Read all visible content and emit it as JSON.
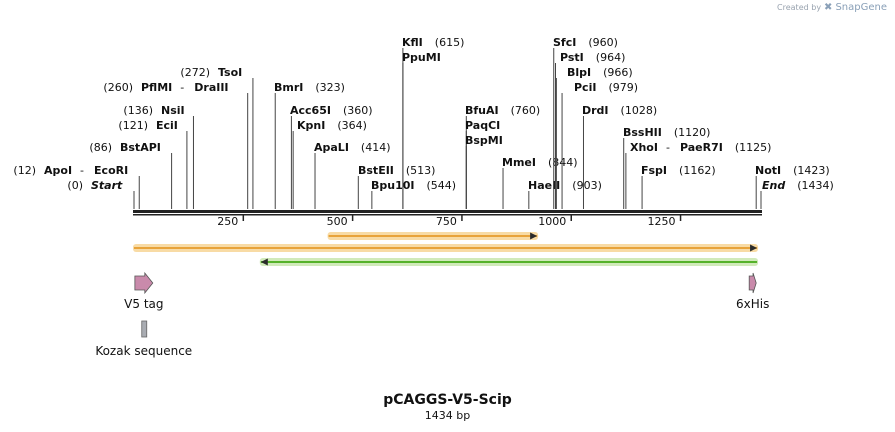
{
  "header": {
    "credit_text": "Created by",
    "brand_name": "SnapGene"
  },
  "map": {
    "plasmid_name": "pCAGGS-V5-Scip",
    "length_label": "1434 bp",
    "total_bp": 1434,
    "start_label": "Start",
    "start_pos": 0,
    "end_label": "End",
    "end_pos": 1434,
    "ticks": [
      250,
      500,
      750,
      1000,
      1250
    ]
  },
  "sites": [
    {
      "name": "ApoI",
      "alt": "EcoRI",
      "pos": 12
    },
    {
      "name": "BstAPI",
      "pos": 86
    },
    {
      "name": "EciI",
      "pos": 121
    },
    {
      "name": "NsiI",
      "pos": 136
    },
    {
      "name": "PflMI",
      "alt": "DraIII",
      "pos": 260
    },
    {
      "name": "TsoI",
      "pos": 272
    },
    {
      "name": "BmrI",
      "pos": 323
    },
    {
      "name": "Acc65I",
      "pos": 360
    },
    {
      "name": "KpnI",
      "pos": 364
    },
    {
      "name": "ApaLI",
      "pos": 414
    },
    {
      "name": "BstEII",
      "pos": 513
    },
    {
      "name": "Bpu10I",
      "pos": 544
    },
    {
      "name": "KflI",
      "pos": 615
    },
    {
      "name": "PpuMI",
      "pos": 615
    },
    {
      "name": "BfuAI",
      "pos": 760
    },
    {
      "name": "PaqCI",
      "pos": 760
    },
    {
      "name": "BspMI",
      "pos": 760
    },
    {
      "name": "MmeI",
      "pos": 844
    },
    {
      "name": "HaeII",
      "pos": 903
    },
    {
      "name": "SfcI",
      "pos": 960
    },
    {
      "name": "PstI",
      "pos": 964
    },
    {
      "name": "BlpI",
      "pos": 966
    },
    {
      "name": "PciI",
      "pos": 979
    },
    {
      "name": "DrdI",
      "pos": 1028
    },
    {
      "name": "BssHII",
      "pos": 1120
    },
    {
      "name": "XhoI",
      "alt": "PaeR7I",
      "pos": 1125
    },
    {
      "name": "FspI",
      "pos": 1162
    },
    {
      "name": "NotI",
      "pos": 1423
    }
  ],
  "orfs": [
    {
      "kind": "orf",
      "from": 0,
      "to": 1425,
      "direction": "forward",
      "color": "#e8a33a",
      "glow": "#f8d9a0"
    },
    {
      "kind": "orf",
      "from": 445,
      "to": 922,
      "direction": "forward",
      "color": "#e8a33a",
      "glow": "#f8d9a0"
    },
    {
      "kind": "orf",
      "from": 290,
      "to": 1425,
      "direction": "reverse",
      "color": "#55b22a",
      "glow": "#cfe9b6"
    }
  ],
  "features": [
    {
      "name": "V5 tag",
      "from": 2,
      "to": 43,
      "type": "arrow",
      "color": "#c98aab"
    },
    {
      "name": "6xHis",
      "from": 1407,
      "to": 1425,
      "type": "arrow",
      "color": "#c98aab"
    },
    {
      "name": "Kozak sequence",
      "from": 4,
      "to": 14,
      "type": "box",
      "color": "#a9acb2"
    }
  ]
}
